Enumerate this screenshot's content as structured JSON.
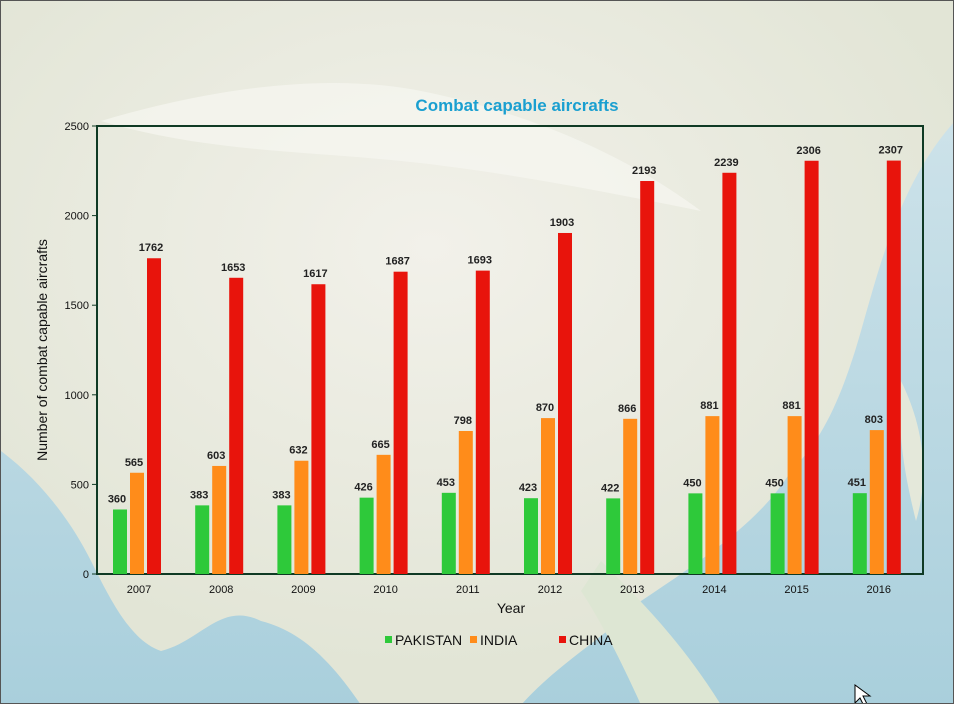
{
  "chart_data": {
    "type": "bar",
    "title": "Combat capable aircrafts",
    "xlabel": "Year",
    "ylabel": "Number of combat capable aircrafts",
    "categories": [
      "2007",
      "2008",
      "2009",
      "2010",
      "2011",
      "2012",
      "2013",
      "2014",
      "2015",
      "2016"
    ],
    "series": [
      {
        "name": "PAKISTAN",
        "color": "#2ec93a",
        "values": [
          360,
          383,
          383,
          426,
          453,
          423,
          422,
          450,
          450,
          451
        ]
      },
      {
        "name": "INDIA",
        "color": "#ff8c1a",
        "values": [
          565,
          603,
          632,
          665,
          798,
          870,
          866,
          881,
          881,
          803
        ]
      },
      {
        "name": "CHINA",
        "color": "#e8140c",
        "values": [
          1762,
          1653,
          1617,
          1687,
          1693,
          1903,
          2193,
          2239,
          2306,
          2307
        ]
      }
    ],
    "ylim": [
      0,
      2500
    ],
    "yticks": [
      0,
      500,
      1000,
      1500,
      2000,
      2500
    ],
    "grid": false,
    "legend_position": "bottom",
    "title_color": "#1a9fd0",
    "frame_color": "#0f3a24"
  }
}
